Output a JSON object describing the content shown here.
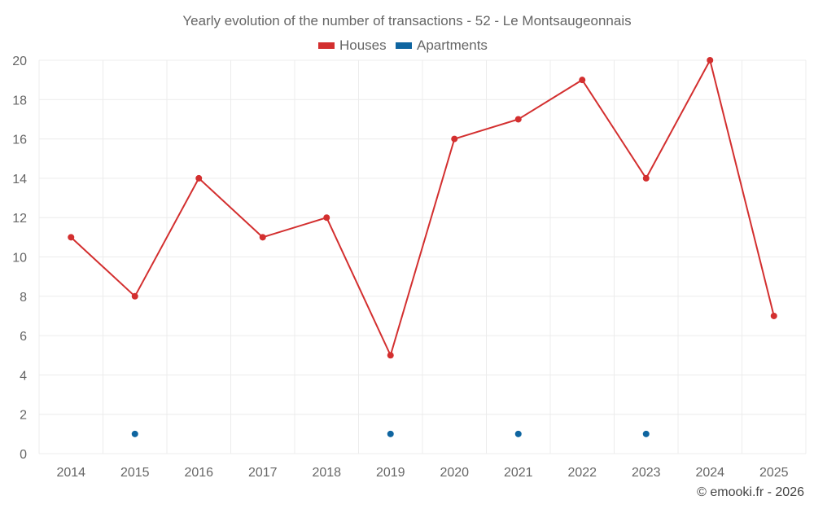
{
  "chart_data": {
    "type": "line",
    "title": "Yearly evolution of the number of transactions - 52 - Le Montsaugeonnais",
    "categories": [
      "2014",
      "2015",
      "2016",
      "2017",
      "2018",
      "2019",
      "2020",
      "2021",
      "2022",
      "2023",
      "2024",
      "2025"
    ],
    "series": [
      {
        "name": "Houses",
        "color": "#d32f2f",
        "style": "line-with-markers",
        "values": [
          11,
          8,
          14,
          11,
          12,
          5,
          16,
          17,
          19,
          14,
          20,
          7
        ]
      },
      {
        "name": "Apartments",
        "color": "#0f65a0",
        "style": "markers-only",
        "values": [
          null,
          1,
          null,
          null,
          null,
          1,
          null,
          1,
          null,
          1,
          null,
          null
        ]
      }
    ],
    "ylim": [
      0,
      20
    ],
    "yticks": [
      "0",
      "2",
      "4",
      "6",
      "8",
      "10",
      "12",
      "14",
      "16",
      "18",
      "20"
    ],
    "grid": true,
    "legend_position": "top-center",
    "xlabel": "",
    "ylabel": ""
  },
  "credit": "© emooki.fr - 2026"
}
